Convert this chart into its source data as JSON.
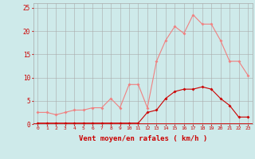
{
  "x": [
    0,
    1,
    2,
    3,
    4,
    5,
    6,
    7,
    8,
    9,
    10,
    11,
    12,
    13,
    14,
    15,
    16,
    17,
    18,
    19,
    20,
    21,
    22,
    23
  ],
  "rafales": [
    2.5,
    2.5,
    2.0,
    2.5,
    3.0,
    3.0,
    3.5,
    3.5,
    5.5,
    3.5,
    8.5,
    8.5,
    3.5,
    13.5,
    18.0,
    21.0,
    19.5,
    23.5,
    21.5,
    21.5,
    18.0,
    13.5,
    13.5,
    10.5
  ],
  "moyen": [
    0.2,
    0.2,
    0.2,
    0.2,
    0.2,
    0.2,
    0.2,
    0.2,
    0.2,
    0.2,
    0.2,
    0.2,
    2.5,
    3.0,
    5.5,
    7.0,
    7.5,
    7.5,
    8.0,
    7.5,
    5.5,
    4.0,
    1.5,
    1.5
  ],
  "color_rafales": "#f08080",
  "color_moyen": "#cc0000",
  "bg_color": "#ceeaea",
  "grid_color": "#aaaaaa",
  "xlabel": "Vent moyen/en rafales ( km/h )",
  "ylim": [
    0,
    26
  ],
  "xlim": [
    -0.5,
    23.5
  ],
  "yticks": [
    0,
    5,
    10,
    15,
    20,
    25
  ],
  "xticks": [
    0,
    1,
    2,
    3,
    4,
    5,
    6,
    7,
    8,
    9,
    10,
    11,
    12,
    13,
    14,
    15,
    16,
    17,
    18,
    19,
    20,
    21,
    22,
    23
  ],
  "label_color": "#cc0000",
  "tick_color": "#cc0000",
  "marker_size": 2.0,
  "line_width": 0.8
}
